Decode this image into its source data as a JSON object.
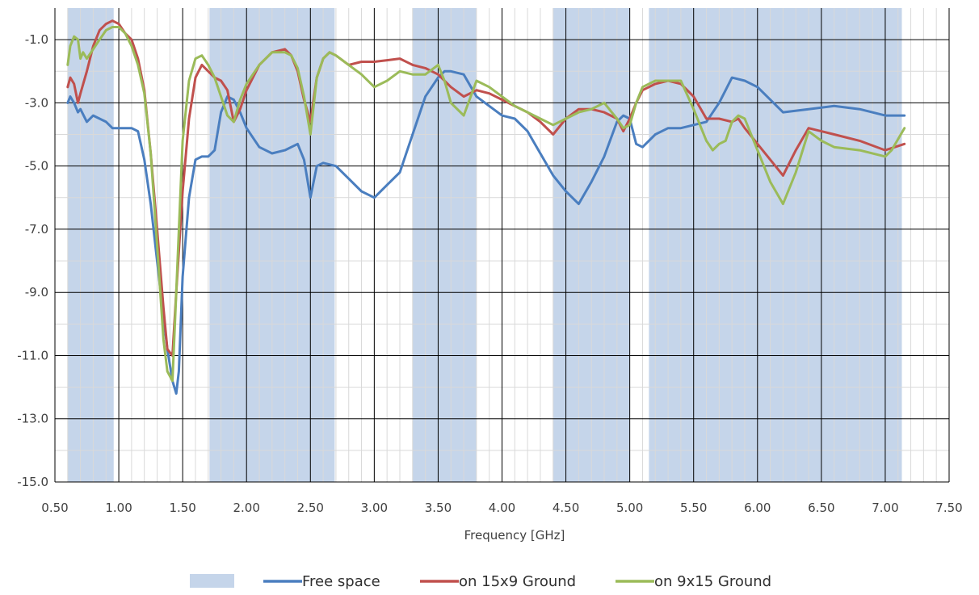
{
  "chart_data": {
    "type": "line",
    "title": "",
    "xlabel": "Frequency [GHz]",
    "ylabel": "",
    "xlim": [
      0.5,
      7.5
    ],
    "ylim": [
      -15,
      0
    ],
    "x_ticks": [
      "0.50",
      "1.00",
      "1.50",
      "2.00",
      "2.50",
      "3.00",
      "3.50",
      "4.00",
      "4.50",
      "5.00",
      "5.50",
      "6.00",
      "6.50",
      "7.00",
      "7.50"
    ],
    "y_ticks": [
      "-1.0",
      "-3.0",
      "-5.0",
      "-7.0",
      "-9.0",
      "-11.0",
      "-13.0",
      "-15.0"
    ],
    "grid": true,
    "legend_position": "bottom",
    "colors": {
      "band": "#c5d5ea",
      "free_space": "#4a7ebf",
      "ground_15x9": "#c0504d",
      "ground_9x15": "#9bbb59"
    },
    "bands": [
      [
        0.6,
        0.96
      ],
      [
        1.71,
        2.69
      ],
      [
        3.3,
        3.8
      ],
      [
        4.4,
        5.0
      ],
      [
        5.15,
        7.13
      ]
    ],
    "series": [
      {
        "name": "Free space",
        "x": [
          0.6,
          0.62,
          0.65,
          0.68,
          0.7,
          0.75,
          0.8,
          0.85,
          0.9,
          0.95,
          1.0,
          1.05,
          1.1,
          1.15,
          1.2,
          1.25,
          1.3,
          1.35,
          1.38,
          1.42,
          1.45,
          1.47,
          1.5,
          1.55,
          1.6,
          1.65,
          1.7,
          1.75,
          1.8,
          1.85,
          1.9,
          1.95,
          2.0,
          2.1,
          2.2,
          2.3,
          2.4,
          2.45,
          2.5,
          2.55,
          2.6,
          2.7,
          2.8,
          2.9,
          3.0,
          3.1,
          3.2,
          3.3,
          3.4,
          3.5,
          3.55,
          3.6,
          3.7,
          3.8,
          3.9,
          4.0,
          4.1,
          4.2,
          4.3,
          4.4,
          4.5,
          4.6,
          4.7,
          4.8,
          4.9,
          4.95,
          5.0,
          5.05,
          5.1,
          5.2,
          5.3,
          5.4,
          5.5,
          5.6,
          5.7,
          5.75,
          5.8,
          5.9,
          6.0,
          6.2,
          6.4,
          6.6,
          6.8,
          7.0,
          7.15
        ],
        "values": [
          -3.0,
          -2.8,
          -3.0,
          -3.3,
          -3.2,
          -3.6,
          -3.4,
          -3.5,
          -3.6,
          -3.8,
          -3.8,
          -3.8,
          -3.8,
          -3.9,
          -4.8,
          -6.2,
          -8.0,
          -9.8,
          -10.8,
          -11.8,
          -12.2,
          -11.5,
          -8.5,
          -6.0,
          -4.8,
          -4.7,
          -4.7,
          -4.5,
          -3.3,
          -2.8,
          -2.9,
          -3.3,
          -3.8,
          -4.4,
          -4.6,
          -4.5,
          -4.3,
          -4.8,
          -6.0,
          -5.0,
          -4.9,
          -5.0,
          -5.4,
          -5.8,
          -6.0,
          -5.6,
          -5.2,
          -4.0,
          -2.8,
          -2.2,
          -2.0,
          -2.0,
          -2.1,
          -2.8,
          -3.1,
          -3.4,
          -3.5,
          -3.9,
          -4.6,
          -5.3,
          -5.8,
          -6.2,
          -5.5,
          -4.7,
          -3.6,
          -3.4,
          -3.5,
          -4.3,
          -4.4,
          -4.0,
          -3.8,
          -3.8,
          -3.7,
          -3.6,
          -3.0,
          -2.6,
          -2.2,
          -2.3,
          -2.5,
          -3.3,
          -3.2,
          -3.1,
          -3.2,
          -3.4,
          -3.4
        ]
      },
      {
        "name": "on 15x9 Ground",
        "x": [
          0.6,
          0.62,
          0.65,
          0.68,
          0.7,
          0.75,
          0.8,
          0.85,
          0.9,
          0.95,
          1.0,
          1.05,
          1.1,
          1.15,
          1.2,
          1.25,
          1.3,
          1.35,
          1.38,
          1.42,
          1.45,
          1.5,
          1.55,
          1.6,
          1.65,
          1.7,
          1.75,
          1.8,
          1.85,
          1.9,
          1.95,
          2.0,
          2.1,
          2.2,
          2.3,
          2.35,
          2.4,
          2.45,
          2.5,
          2.55,
          2.6,
          2.65,
          2.7,
          2.8,
          2.9,
          3.0,
          3.1,
          3.2,
          3.3,
          3.4,
          3.5,
          3.6,
          3.7,
          3.8,
          3.9,
          4.0,
          4.1,
          4.2,
          4.3,
          4.4,
          4.5,
          4.6,
          4.7,
          4.8,
          4.9,
          4.95,
          5.0,
          5.05,
          5.1,
          5.2,
          5.3,
          5.4,
          5.5,
          5.6,
          5.7,
          5.8,
          5.85,
          5.9,
          6.0,
          6.1,
          6.2,
          6.3,
          6.4,
          6.5,
          6.6,
          6.8,
          7.0,
          7.15
        ],
        "values": [
          -2.5,
          -2.2,
          -2.4,
          -3.0,
          -2.7,
          -2.0,
          -1.2,
          -0.7,
          -0.5,
          -0.4,
          -0.5,
          -0.8,
          -1.0,
          -1.6,
          -2.6,
          -4.6,
          -7.0,
          -9.5,
          -10.8,
          -11.0,
          -9.0,
          -5.8,
          -3.5,
          -2.2,
          -1.8,
          -2.0,
          -2.2,
          -2.3,
          -2.6,
          -3.6,
          -3.2,
          -2.6,
          -1.8,
          -1.4,
          -1.3,
          -1.5,
          -2.0,
          -2.9,
          -3.6,
          -2.2,
          -1.6,
          -1.4,
          -1.5,
          -1.8,
          -1.7,
          -1.7,
          -1.65,
          -1.6,
          -1.8,
          -1.9,
          -2.1,
          -2.5,
          -2.8,
          -2.6,
          -2.7,
          -2.9,
          -3.1,
          -3.3,
          -3.6,
          -4.0,
          -3.5,
          -3.2,
          -3.2,
          -3.3,
          -3.5,
          -3.9,
          -3.5,
          -3.0,
          -2.6,
          -2.4,
          -2.3,
          -2.4,
          -2.8,
          -3.5,
          -3.5,
          -3.6,
          -3.5,
          -3.8,
          -4.3,
          -4.8,
          -5.3,
          -4.5,
          -3.8,
          -3.9,
          -4.0,
          -4.2,
          -4.5,
          -4.3
        ]
      },
      {
        "name": "on 9x15 Ground",
        "x": [
          0.6,
          0.62,
          0.65,
          0.68,
          0.7,
          0.72,
          0.75,
          0.8,
          0.85,
          0.9,
          0.95,
          1.0,
          1.05,
          1.1,
          1.15,
          1.2,
          1.25,
          1.3,
          1.35,
          1.38,
          1.42,
          1.45,
          1.5,
          1.55,
          1.6,
          1.65,
          1.7,
          1.75,
          1.8,
          1.85,
          1.9,
          1.95,
          2.0,
          2.1,
          2.2,
          2.3,
          2.35,
          2.4,
          2.45,
          2.5,
          2.55,
          2.6,
          2.65,
          2.7,
          2.8,
          2.9,
          3.0,
          3.1,
          3.2,
          3.3,
          3.4,
          3.5,
          3.55,
          3.6,
          3.7,
          3.8,
          3.9,
          4.0,
          4.1,
          4.2,
          4.3,
          4.4,
          4.5,
          4.6,
          4.7,
          4.8,
          4.9,
          4.95,
          5.0,
          5.05,
          5.1,
          5.2,
          5.3,
          5.4,
          5.5,
          5.6,
          5.65,
          5.7,
          5.75,
          5.8,
          5.85,
          5.9,
          6.0,
          6.1,
          6.2,
          6.3,
          6.4,
          6.5,
          6.6,
          6.8,
          7.0,
          7.05,
          7.15
        ],
        "values": [
          -1.8,
          -1.2,
          -0.9,
          -1.0,
          -1.6,
          -1.4,
          -1.6,
          -1.3,
          -1.0,
          -0.7,
          -0.6,
          -0.6,
          -0.8,
          -1.2,
          -1.8,
          -2.7,
          -4.6,
          -7.5,
          -10.5,
          -11.5,
          -11.8,
          -9.0,
          -4.2,
          -2.3,
          -1.6,
          -1.5,
          -1.8,
          -2.2,
          -2.8,
          -3.4,
          -3.6,
          -2.9,
          -2.4,
          -1.8,
          -1.4,
          -1.4,
          -1.5,
          -1.9,
          -2.8,
          -4.0,
          -2.2,
          -1.6,
          -1.4,
          -1.5,
          -1.8,
          -2.1,
          -2.5,
          -2.3,
          -2.0,
          -2.1,
          -2.1,
          -1.8,
          -2.3,
          -3.0,
          -3.4,
          -2.3,
          -2.5,
          -2.8,
          -3.1,
          -3.3,
          -3.5,
          -3.7,
          -3.5,
          -3.3,
          -3.2,
          -3.0,
          -3.5,
          -3.8,
          -3.7,
          -3.0,
          -2.5,
          -2.3,
          -2.3,
          -2.3,
          -3.2,
          -4.2,
          -4.5,
          -4.3,
          -4.2,
          -3.6,
          -3.4,
          -3.5,
          -4.5,
          -5.5,
          -6.2,
          -5.2,
          -3.9,
          -4.2,
          -4.4,
          -4.5,
          -4.7,
          -4.5,
          -3.8
        ]
      }
    ]
  }
}
